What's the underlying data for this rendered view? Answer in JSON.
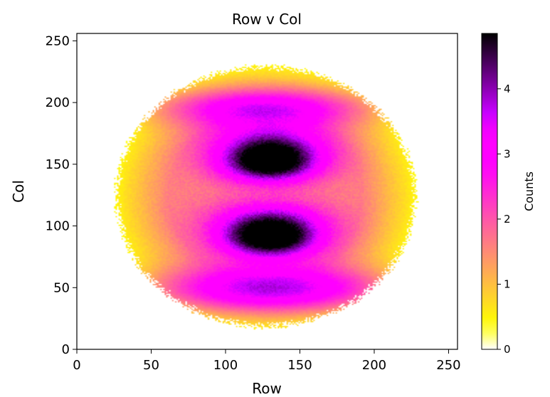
{
  "chart_data": {
    "type": "heatmap",
    "title": "Row v Col",
    "xlabel": "Row",
    "ylabel": "Col",
    "xlim": [
      0,
      256
    ],
    "ylim": [
      0,
      256
    ],
    "xticks": [
      0,
      50,
      100,
      150,
      200,
      250
    ],
    "yticks": [
      0,
      50,
      100,
      150,
      200,
      250
    ],
    "colormap": "gnuplot2_r",
    "colorbar": {
      "label": "Counts",
      "range": [
        0,
        4.85
      ],
      "ticks": [
        0,
        1,
        2,
        3,
        4
      ]
    },
    "grid": false,
    "features": {
      "disk": {
        "center": [
          127,
          124
        ],
        "radius_x": 100,
        "radius_y": 105,
        "edge_value": 0.5,
        "inner_value": 1.6
      },
      "blobs": [
        {
          "center": [
            130,
            162
          ],
          "sigma": [
            26,
            13
          ],
          "peak": 2.9
        },
        {
          "center": [
            130,
            148
          ],
          "sigma": [
            22,
            10
          ],
          "peak": 2.4
        },
        {
          "center": [
            130,
            100
          ],
          "sigma": [
            26,
            13
          ],
          "peak": 2.9
        },
        {
          "center": [
            130,
            87
          ],
          "sigma": [
            22,
            10
          ],
          "peak": 2.3
        },
        {
          "center": [
            133,
            48
          ],
          "sigma": [
            62,
            13
          ],
          "peak": 2.4
        },
        {
          "center": [
            125,
            196
          ],
          "sigma": [
            52,
            11
          ],
          "peak": 2.0
        }
      ]
    }
  }
}
